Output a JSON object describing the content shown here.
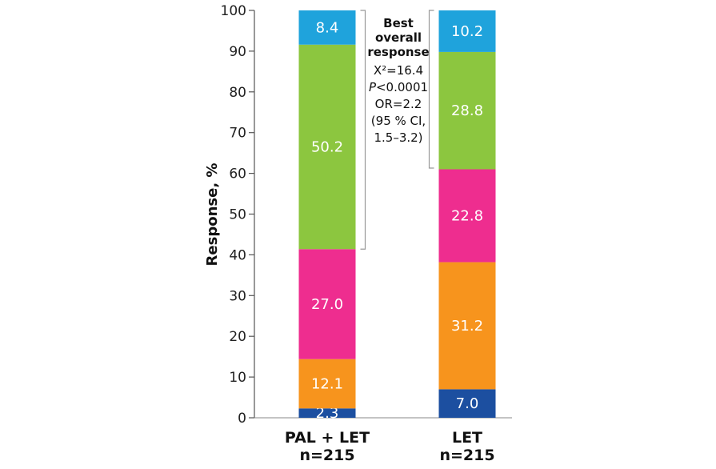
{
  "chart_data": {
    "type": "bar",
    "stacked": true,
    "categories": [
      {
        "label": "PAL + LET",
        "sublabel": "n=215"
      },
      {
        "label": "LET",
        "sublabel": "n=215"
      }
    ],
    "series": [
      {
        "color": "#1c4fa0",
        "values": [
          2.3,
          7.0
        ],
        "labels": [
          "2.3",
          "7.0"
        ]
      },
      {
        "color": "#f7941d",
        "values": [
          12.1,
          31.2
        ],
        "labels": [
          "12.1",
          "31.2"
        ]
      },
      {
        "color": "#ee2d8f",
        "values": [
          27.0,
          22.8
        ],
        "labels": [
          "27.0",
          "22.8"
        ]
      },
      {
        "color": "#8cc63f",
        "values": [
          50.2,
          28.8
        ],
        "labels": [
          "50.2",
          "28.8"
        ]
      },
      {
        "color": "#1fa3dc",
        "values": [
          8.4,
          10.2
        ],
        "labels": [
          "8.4",
          "10.2"
        ]
      }
    ],
    "ylabel": "Response, %",
    "ylim": [
      0,
      100
    ],
    "yticks": [
      0,
      10,
      20,
      30,
      40,
      50,
      60,
      70,
      80,
      90,
      100
    ],
    "grid": false,
    "annotation": {
      "title_lines": [
        "Best",
        "overall",
        "response"
      ],
      "stat_lines": [
        "X²=16.4",
        "P<0.0001",
        "OR=2.2",
        "(95 % CI,",
        "1.5–3.2)"
      ],
      "bracket_left": {
        "category": 0,
        "from": 41.4,
        "to": 100
      },
      "bracket_right": {
        "category": 1,
        "from": 61.3,
        "to": 100
      }
    }
  }
}
